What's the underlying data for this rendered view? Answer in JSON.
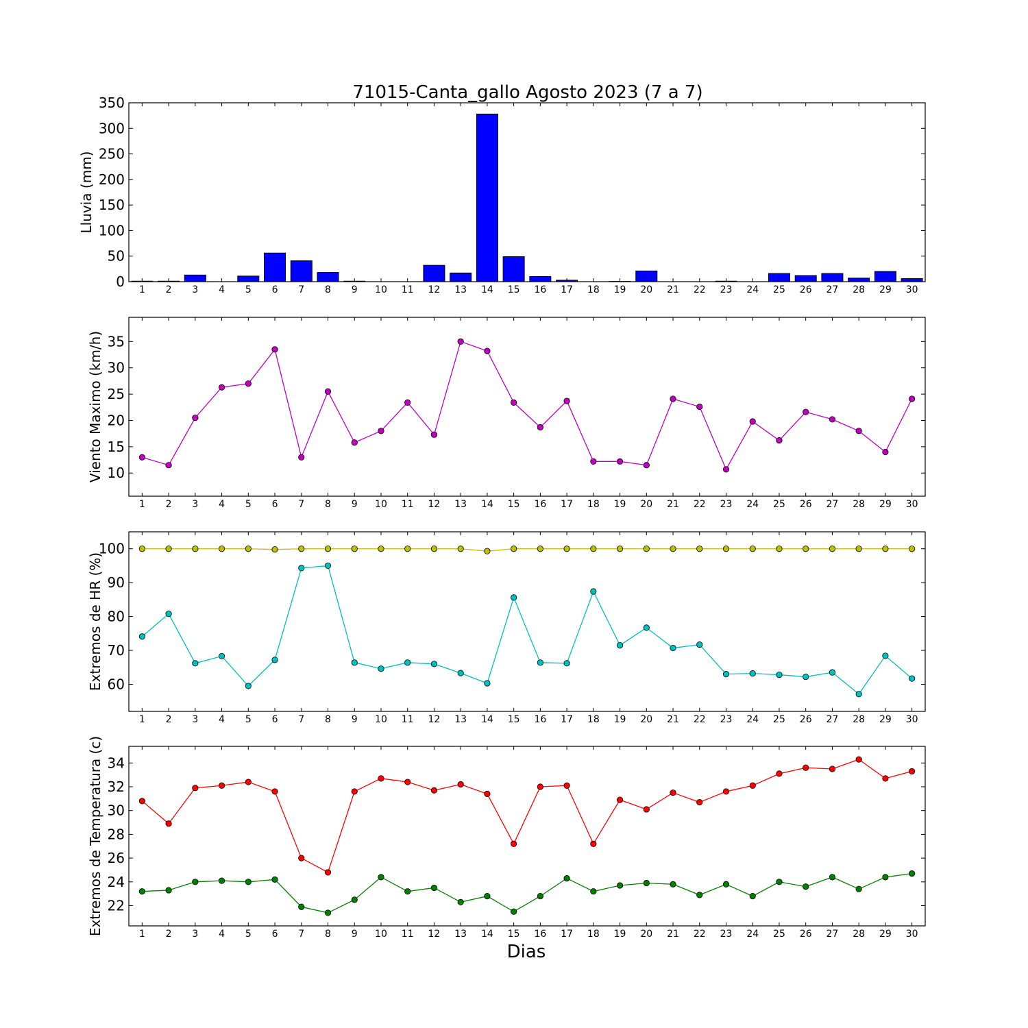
{
  "figure": {
    "title": "71015-Canta_gallo Agosto 2023  (7 a 7)",
    "xlabel": "Dias"
  },
  "chart_data": [
    {
      "type": "bar",
      "ylabel": "Lluvia (mm)",
      "ylim": [
        0,
        350
      ],
      "yticks": [
        0,
        50,
        100,
        150,
        200,
        250,
        300,
        350
      ],
      "categories": [
        1,
        2,
        3,
        4,
        5,
        6,
        7,
        8,
        9,
        10,
        11,
        12,
        13,
        14,
        15,
        16,
        17,
        18,
        19,
        20,
        21,
        22,
        23,
        24,
        25,
        26,
        27,
        28,
        29,
        30
      ],
      "values": [
        1,
        1,
        13,
        0,
        11,
        56,
        41,
        18,
        1,
        0,
        0,
        32,
        17,
        328,
        49,
        10,
        3,
        0,
        0.5,
        21,
        0,
        0,
        1,
        0,
        16,
        12,
        16,
        7,
        20,
        6
      ],
      "color": "#0000ff"
    },
    {
      "type": "line",
      "ylabel": "Viento Maximo (km/h)",
      "ylim": [
        5.6,
        39.6
      ],
      "yticks": [
        10,
        15,
        20,
        25,
        30,
        35
      ],
      "x": [
        1,
        2,
        3,
        4,
        5,
        6,
        7,
        8,
        9,
        10,
        11,
        12,
        13,
        14,
        15,
        16,
        17,
        18,
        19,
        20,
        21,
        22,
        23,
        24,
        25,
        26,
        27,
        28,
        29,
        30
      ],
      "series": [
        {
          "color": "#bf00bf",
          "values": [
            13,
            11.5,
            20.5,
            26.3,
            27,
            33.5,
            13,
            25.5,
            15.8,
            18,
            23.4,
            17.3,
            35,
            33.2,
            23.4,
            18.7,
            23.7,
            12.2,
            12.2,
            11.5,
            24.1,
            22.6,
            10.7,
            19.8,
            16.2,
            21.6,
            20.2,
            18,
            14,
            24.1
          ]
        }
      ]
    },
    {
      "type": "line",
      "ylabel": "Extremos de HR (%)",
      "ylim": [
        52,
        105
      ],
      "yticks": [
        60,
        70,
        80,
        90,
        100
      ],
      "x": [
        1,
        2,
        3,
        4,
        5,
        6,
        7,
        8,
        9,
        10,
        11,
        12,
        13,
        14,
        15,
        16,
        17,
        18,
        19,
        20,
        21,
        22,
        23,
        24,
        25,
        26,
        27,
        28,
        29,
        30
      ],
      "series": [
        {
          "color": "#bfbf00",
          "values": [
            100,
            100,
            100,
            100,
            100,
            99.8,
            100,
            100,
            100,
            100,
            100,
            100,
            100,
            99.3,
            100,
            100,
            100,
            100,
            100,
            100,
            100,
            100,
            100,
            100,
            100,
            100,
            100,
            100,
            100,
            100
          ]
        },
        {
          "color": "#00bfbf",
          "values": [
            74.1,
            80.8,
            66.2,
            68.3,
            59.5,
            67.2,
            94.3,
            95,
            66.4,
            64.6,
            66.4,
            66,
            63.3,
            60.3,
            85.6,
            66.4,
            66.2,
            87.4,
            71.5,
            76.7,
            70.7,
            71.7,
            63,
            63.2,
            62.8,
            62.2,
            63.5,
            57.1,
            68.4,
            61.7
          ]
        }
      ]
    },
    {
      "type": "line",
      "ylabel": "Extremos de Temperatura (c)",
      "ylim": [
        20.3,
        35.4
      ],
      "yticks": [
        22,
        24,
        26,
        28,
        30,
        32,
        34
      ],
      "x": [
        1,
        2,
        3,
        4,
        5,
        6,
        7,
        8,
        9,
        10,
        11,
        12,
        13,
        14,
        15,
        16,
        17,
        18,
        19,
        20,
        21,
        22,
        23,
        24,
        25,
        26,
        27,
        28,
        29,
        30
      ],
      "series": [
        {
          "color": "#ff0000",
          "values": [
            30.8,
            28.9,
            31.9,
            32.1,
            32.4,
            31.6,
            26,
            24.8,
            31.6,
            32.7,
            32.4,
            31.7,
            32.2,
            31.4,
            27.2,
            32,
            32.1,
            27.2,
            30.9,
            30.1,
            31.5,
            30.7,
            31.6,
            32.1,
            33.1,
            33.6,
            33.5,
            34.3,
            32.7,
            33.3
          ]
        },
        {
          "color": "#007f00",
          "values": [
            23.2,
            23.3,
            24,
            24.1,
            24,
            24.2,
            21.9,
            21.4,
            22.5,
            24.4,
            23.2,
            23.5,
            22.3,
            22.8,
            21.5,
            22.8,
            24.3,
            23.2,
            23.7,
            23.9,
            23.8,
            22.9,
            23.8,
            22.8,
            24,
            23.6,
            24.4,
            23.4,
            24.4,
            24.7
          ]
        }
      ]
    }
  ]
}
